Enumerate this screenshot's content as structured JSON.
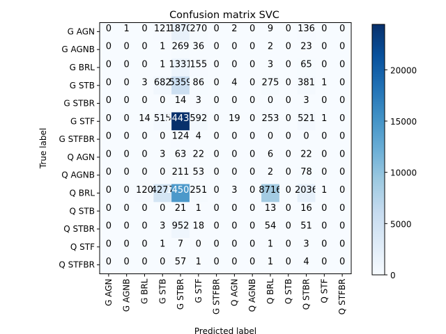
{
  "chart_data": {
    "type": "heatmap",
    "title": "Confusion matrix SVC",
    "xlabel": "Predicted label",
    "ylabel": "True label",
    "labels": [
      "G AGN",
      "G AGNB",
      "G BRL",
      "G STB",
      "G STBR",
      "G STF",
      "G STFBR",
      "Q AGN",
      "Q AGNB",
      "Q BRL",
      "Q STB",
      "Q STBR",
      "Q STF",
      "Q STFBR"
    ],
    "matrix": [
      [
        0,
        1,
        0,
        121,
        1870,
        270,
        0,
        2,
        0,
        9,
        0,
        136,
        0,
        0
      ],
      [
        0,
        0,
        0,
        1,
        269,
        36,
        0,
        0,
        0,
        2,
        0,
        23,
        0,
        0
      ],
      [
        0,
        0,
        0,
        1,
        1331,
        155,
        0,
        0,
        0,
        3,
        0,
        65,
        0,
        0
      ],
      [
        0,
        0,
        3,
        682,
        5359,
        86,
        0,
        4,
        0,
        275,
        0,
        381,
        1,
        0
      ],
      [
        0,
        0,
        0,
        0,
        14,
        3,
        0,
        0,
        0,
        0,
        0,
        3,
        0,
        0
      ],
      [
        0,
        0,
        14,
        515,
        24433,
        592,
        0,
        19,
        0,
        253,
        0,
        521,
        1,
        0
      ],
      [
        0,
        0,
        0,
        0,
        124,
        4,
        0,
        0,
        0,
        0,
        0,
        0,
        0,
        0
      ],
      [
        0,
        0,
        0,
        3,
        63,
        22,
        0,
        0,
        0,
        6,
        0,
        22,
        0,
        0
      ],
      [
        0,
        0,
        0,
        0,
        211,
        53,
        0,
        0,
        0,
        2,
        0,
        78,
        0,
        0
      ],
      [
        0,
        0,
        120,
        4277,
        14500,
        251,
        0,
        3,
        0,
        8716,
        0,
        2036,
        1,
        0
      ],
      [
        0,
        0,
        0,
        0,
        21,
        1,
        0,
        0,
        0,
        13,
        0,
        16,
        0,
        0
      ],
      [
        0,
        0,
        0,
        3,
        952,
        18,
        0,
        0,
        0,
        54,
        0,
        51,
        0,
        0
      ],
      [
        0,
        0,
        0,
        1,
        7,
        0,
        0,
        0,
        0,
        1,
        0,
        3,
        0,
        0
      ],
      [
        0,
        0,
        0,
        0,
        57,
        1,
        0,
        0,
        0,
        1,
        0,
        4,
        0,
        0
      ]
    ],
    "colorbar": {
      "min": 0,
      "max": 24433,
      "ticks": [
        0,
        5000,
        10000,
        15000,
        20000
      ]
    },
    "colormap": "Blues",
    "grid": false
  }
}
